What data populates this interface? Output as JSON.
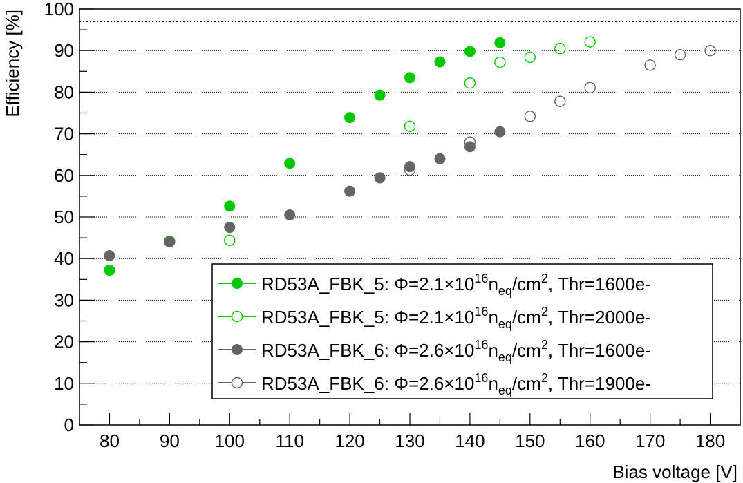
{
  "chart_data": {
    "type": "scatter",
    "title": "",
    "xlabel": "Bias voltage [V]",
    "ylabel": "Efficiency [%]",
    "xlim": [
      75,
      185
    ],
    "ylim": [
      0,
      100
    ],
    "xticks": [
      80,
      90,
      100,
      110,
      120,
      130,
      140,
      150,
      160,
      170,
      180
    ],
    "yticks": [
      0,
      10,
      20,
      30,
      40,
      50,
      60,
      70,
      80,
      90,
      100
    ],
    "grid": "horizontal dotted",
    "reference_line": 97,
    "legend_position": "bottom-right",
    "series": [
      {
        "name": "RD53A_FBK_5: Φ=2.1×10^16 n_eq/cm^2, Thr=1600e-",
        "sensor": "RD53A_FBK_5:",
        "fluence": "2.1",
        "threshold": "Thr=1600e-",
        "color": "#00c800",
        "marker": "filled",
        "x": [
          80,
          90,
          100,
          110,
          120,
          125,
          130,
          135,
          140,
          145
        ],
        "values": [
          37.2,
          44.2,
          52.6,
          62.9,
          73.9,
          79.3,
          83.5,
          87.3,
          89.8,
          91.9
        ]
      },
      {
        "name": "RD53A_FBK_5: Φ=2.1×10^16 n_eq/cm^2, Thr=2000e-",
        "sensor": "RD53A_FBK_5:",
        "fluence": "2.1",
        "threshold": "Thr=2000e-",
        "color": "#00c800",
        "marker": "open",
        "x": [
          100,
          130,
          140,
          145,
          150,
          155,
          160
        ],
        "values": [
          44.4,
          71.8,
          82.2,
          87.2,
          88.4,
          90.5,
          92.1
        ]
      },
      {
        "name": "RD53A_FBK_6: Φ=2.6×10^16 n_eq/cm^2, Thr=1600e-",
        "sensor": "RD53A_FBK_6:",
        "fluence": "2.6",
        "threshold": "Thr=1600e-",
        "color": "#646464",
        "marker": "filled",
        "x": [
          80,
          90,
          100,
          110,
          120,
          125,
          130,
          135,
          140,
          145
        ],
        "values": [
          40.7,
          44.0,
          47.5,
          50.5,
          56.2,
          59.4,
          62.1,
          64.0,
          66.9,
          70.5
        ]
      },
      {
        "name": "RD53A_FBK_6: Φ=2.6×10^16 n_eq/cm^2, Thr=1900e-",
        "sensor": "RD53A_FBK_6:",
        "fluence": "2.6",
        "threshold": "Thr=1900e-",
        "color": "#646464",
        "marker": "open",
        "x": [
          130,
          140,
          150,
          155,
          160,
          170,
          175,
          180
        ],
        "values": [
          61.3,
          68.0,
          74.2,
          77.8,
          81.1,
          86.5,
          89.0,
          90.0
        ]
      }
    ]
  },
  "legend": {
    "phi": "Φ=",
    "times_ten": "×10",
    "exponent": "16",
    "n": "n",
    "n_sub": "eq",
    "per_cm": "/cm",
    "cm_exp": "2",
    "comma": ","
  }
}
